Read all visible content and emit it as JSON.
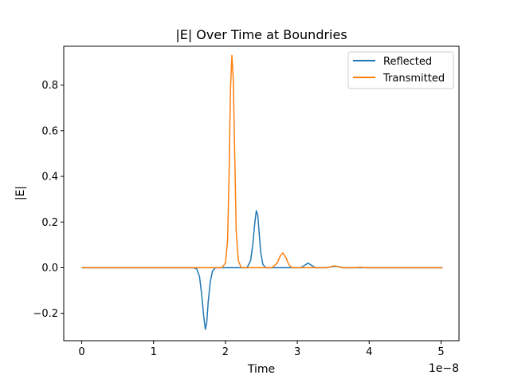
{
  "chart_data": {
    "type": "line",
    "title": "|E| Over Time at Boundries",
    "xlabel": "Time",
    "ylabel": "|E|",
    "x_offset_label": "1e−8",
    "xlim": [
      -0.25,
      5.25
    ],
    "ylim": [
      -0.32,
      0.97
    ],
    "x_ticks": [
      0,
      1,
      2,
      3,
      4,
      5
    ],
    "x_tick_labels": [
      "0",
      "1",
      "2",
      "3",
      "4",
      "5"
    ],
    "y_ticks": [
      -0.2,
      0.0,
      0.2,
      0.4,
      0.6,
      0.8
    ],
    "y_tick_labels": [
      "−0.2",
      "0.0",
      "0.2",
      "0.4",
      "0.6",
      "0.8"
    ],
    "grid": false,
    "legend_position": "top-right",
    "series": [
      {
        "name": "Reflected",
        "color": "#1f77b4",
        "x": [
          0,
          1.55,
          1.6,
          1.64,
          1.67,
          1.7,
          1.72,
          1.74,
          1.76,
          1.79,
          1.82,
          1.86,
          1.95,
          2.3,
          2.35,
          2.38,
          2.41,
          2.43,
          2.45,
          2.47,
          2.49,
          2.52,
          2.56,
          3.05,
          3.1,
          3.15,
          3.2,
          3.25,
          3.4,
          3.48,
          3.55,
          3.62,
          5.02
        ],
        "y": [
          0,
          0,
          -0.005,
          -0.04,
          -0.12,
          -0.22,
          -0.27,
          -0.24,
          -0.15,
          -0.06,
          -0.015,
          0,
          0,
          0,
          0.03,
          0.1,
          0.2,
          0.25,
          0.23,
          0.15,
          0.07,
          0.015,
          0,
          0,
          0.01,
          0.02,
          0.01,
          0,
          0,
          0.004,
          0.006,
          0,
          0
        ]
      },
      {
        "name": "Transmitted",
        "color": "#ff7f0e",
        "x": [
          0,
          1.95,
          2.0,
          2.03,
          2.05,
          2.07,
          2.09,
          2.11,
          2.13,
          2.15,
          2.18,
          2.22,
          2.65,
          2.72,
          2.76,
          2.8,
          2.84,
          2.88,
          2.92,
          3.42,
          3.48,
          3.52,
          3.56,
          3.62,
          3.82,
          3.88,
          3.94,
          5.02
        ],
        "y": [
          0,
          0,
          0.02,
          0.12,
          0.4,
          0.78,
          0.93,
          0.82,
          0.48,
          0.16,
          0.03,
          0,
          0,
          0.02,
          0.05,
          0.065,
          0.045,
          0.015,
          0,
          0,
          0.005,
          0.008,
          0.004,
          0,
          0,
          0.002,
          0,
          0
        ]
      }
    ]
  }
}
